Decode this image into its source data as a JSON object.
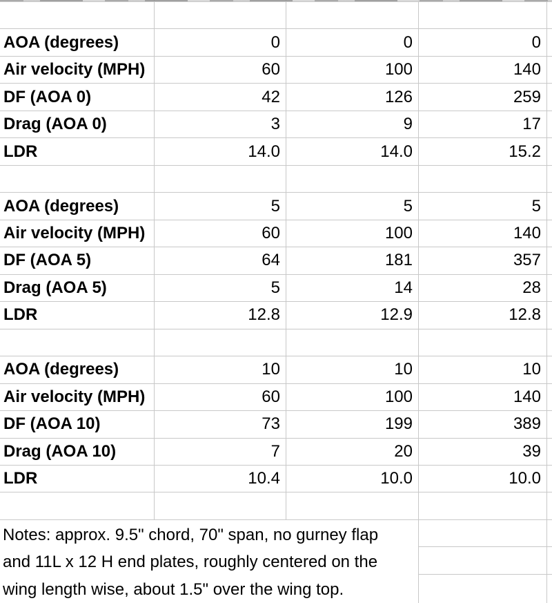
{
  "sheet": {
    "description": "Wing downforce test spreadsheet",
    "velocity_label": "Air velocity (MPH)",
    "aoa_label": "AOA (degrees)",
    "blocks": [
      {
        "rows": [
          {
            "label": "AOA (degrees)",
            "values": [
              "0",
              "0",
              "0"
            ]
          },
          {
            "label": "Air velocity (MPH)",
            "values": [
              "60",
              "100",
              "140"
            ]
          },
          {
            "label": "DF (AOA 0)",
            "values": [
              "42",
              "126",
              "259"
            ]
          },
          {
            "label": "Drag (AOA 0)",
            "values": [
              "3",
              "9",
              "17"
            ]
          },
          {
            "label": "LDR",
            "values": [
              "14.0",
              "14.0",
              "15.2"
            ]
          }
        ]
      },
      {
        "rows": [
          {
            "label": "AOA (degrees)",
            "values": [
              "5",
              "5",
              "5"
            ]
          },
          {
            "label": "Air velocity (MPH)",
            "values": [
              "60",
              "100",
              "140"
            ]
          },
          {
            "label": "DF (AOA 5)",
            "values": [
              "64",
              "181",
              "357"
            ]
          },
          {
            "label": "Drag (AOA 5)",
            "values": [
              "5",
              "14",
              "28"
            ]
          },
          {
            "label": "LDR",
            "values": [
              "12.8",
              "12.9",
              "12.8"
            ]
          }
        ]
      },
      {
        "rows": [
          {
            "label": "AOA (degrees)",
            "values": [
              "10",
              "10",
              "10"
            ]
          },
          {
            "label": "Air velocity (MPH)",
            "values": [
              "60",
              "100",
              "140"
            ]
          },
          {
            "label": "DF (AOA 10)",
            "values": [
              "73",
              "199",
              "389"
            ]
          },
          {
            "label": "Drag (AOA 10)",
            "values": [
              "7",
              "20",
              "39"
            ]
          },
          {
            "label": "LDR",
            "values": [
              "10.4",
              "10.0",
              "10.0"
            ]
          }
        ]
      }
    ],
    "notes": "Notes: approx. 9.5\" chord, 70\" span, no gurney flap and 11L x 12 H end plates, roughly centered on the wing length wise, about 1.5\" over the wing top."
  },
  "colors": {
    "gridline": "#c8c8c8",
    "text": "#000000",
    "background": "#ffffff"
  }
}
